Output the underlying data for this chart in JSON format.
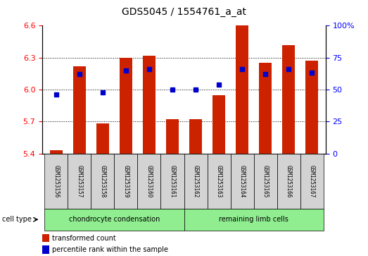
{
  "title": "GDS5045 / 1554761_a_at",
  "samples": [
    "GSM1253156",
    "GSM1253157",
    "GSM1253158",
    "GSM1253159",
    "GSM1253160",
    "GSM1253161",
    "GSM1253162",
    "GSM1253163",
    "GSM1253164",
    "GSM1253165",
    "GSM1253166",
    "GSM1253167"
  ],
  "transformed_count": [
    5.43,
    6.22,
    5.68,
    6.3,
    6.32,
    5.72,
    5.72,
    5.95,
    6.6,
    6.25,
    6.42,
    6.27
  ],
  "percentile_rank": [
    46,
    62,
    48,
    65,
    66,
    50,
    50,
    54,
    66,
    62,
    66,
    63
  ],
  "ylim_left": [
    5.4,
    6.6
  ],
  "ylim_right": [
    0,
    100
  ],
  "yticks_left": [
    5.4,
    5.7,
    6.0,
    6.3,
    6.6
  ],
  "yticks_right": [
    0,
    25,
    50,
    75,
    100
  ],
  "bar_color": "#CC2200",
  "dot_color": "#0000CC",
  "bar_bottom": 5.4,
  "bar_width": 0.55,
  "legend_items": [
    {
      "label": "transformed count",
      "color": "#CC2200"
    },
    {
      "label": "percentile rank within the sample",
      "color": "#0000CC"
    }
  ],
  "group1_label": "chondrocyte condensation",
  "group1_indices": [
    0,
    5
  ],
  "group2_label": "remaining limb cells",
  "group2_indices": [
    6,
    11
  ],
  "group_color": "#90EE90",
  "group_label": "cell type",
  "sample_box_color": "#D3D3D3"
}
